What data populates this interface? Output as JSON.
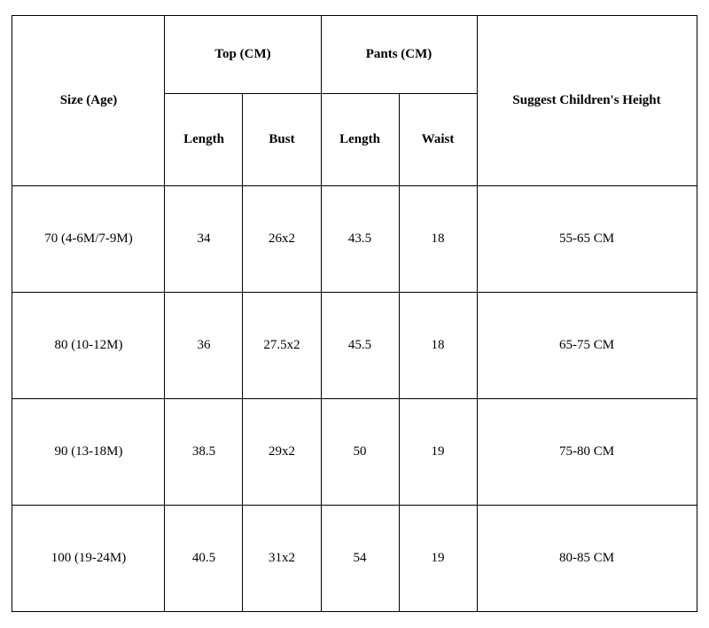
{
  "table": {
    "headers": {
      "size": "Size (Age)",
      "top": "Top (CM)",
      "pants": "Pants (CM)",
      "height": "Suggest Children's Height",
      "top_length": "Length",
      "top_bust": "Bust",
      "pants_length": "Length",
      "pants_waist": "Waist"
    },
    "rows": [
      {
        "size": "70 (4-6M/7-9M)",
        "top_length": "34",
        "top_bust": "26x2",
        "pants_length": "43.5",
        "pants_waist": "18",
        "height": "55-65 CM"
      },
      {
        "size": "80 (10-12M)",
        "top_length": "36",
        "top_bust": "27.5x2",
        "pants_length": "45.5",
        "pants_waist": "18",
        "height": "65-75 CM"
      },
      {
        "size": "90 (13-18M)",
        "top_length": "38.5",
        "top_bust": "29x2",
        "pants_length": "50",
        "pants_waist": "19",
        "height": "75-80 CM"
      },
      {
        "size": "100 (19-24M)",
        "top_length": "40.5",
        "top_bust": "31x2",
        "pants_length": "54",
        "pants_waist": "19",
        "height": "80-85 CM"
      }
    ],
    "border_color": "#000000",
    "background_color": "#ffffff",
    "font_family": "Times New Roman",
    "header_fontsize": 15,
    "cell_fontsize": 15
  }
}
